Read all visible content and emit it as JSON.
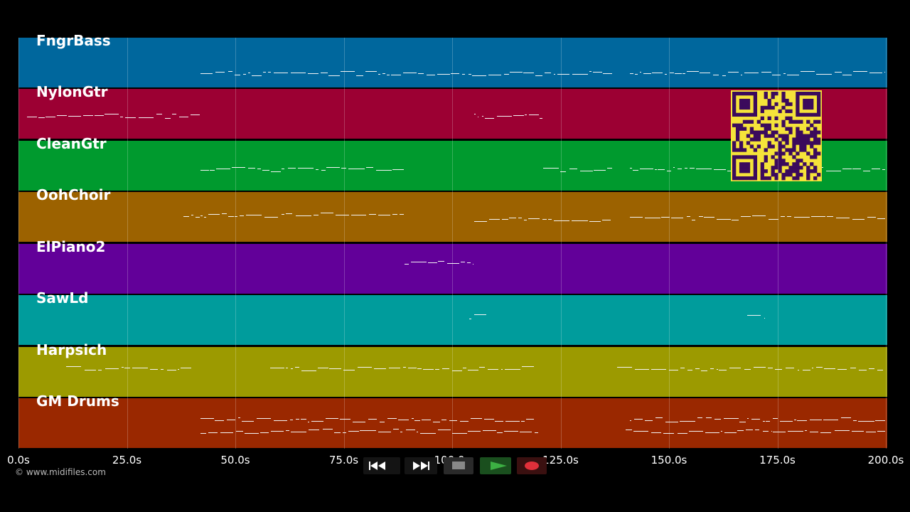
{
  "tracks": [
    {
      "name": "FngrBass",
      "color": "#00679d"
    },
    {
      "name": "NylonGtr",
      "color": "#9c0033"
    },
    {
      "name": "CleanGtr",
      "color": "#009a2e"
    },
    {
      "name": "OohChoir",
      "color": "#9c6200"
    },
    {
      "name": "ElPiano2",
      "color": "#620099"
    },
    {
      "name": "SawLd",
      "color": "#009c9c"
    },
    {
      "name": "Harpsich",
      "color": "#9c9a00"
    },
    {
      "name": "GM Drums",
      "color": "#9a2800"
    }
  ],
  "timeline": {
    "ticks": [
      "0.0s",
      "25.0s",
      "50.0s",
      "75.0s",
      "100.0s",
      "125.0s",
      "150.0s",
      "175.0s",
      "200.0s"
    ],
    "tick_seconds": [
      0,
      25,
      50,
      75,
      100,
      125,
      150,
      175,
      200
    ],
    "max_seconds": 200
  },
  "copyright": "© www.midifiles.com",
  "transport": {
    "rewind_icon": "rewind-icon",
    "forward_icon": "fast-forward-icon",
    "stop_icon": "stop-icon",
    "play_icon": "play-icon",
    "record_icon": "record-icon",
    "play_color": "#3cb043",
    "record_color": "#e0303a"
  },
  "qr_code": {
    "color": "#f5e33a",
    "ink": "#3b0a5c"
  }
}
